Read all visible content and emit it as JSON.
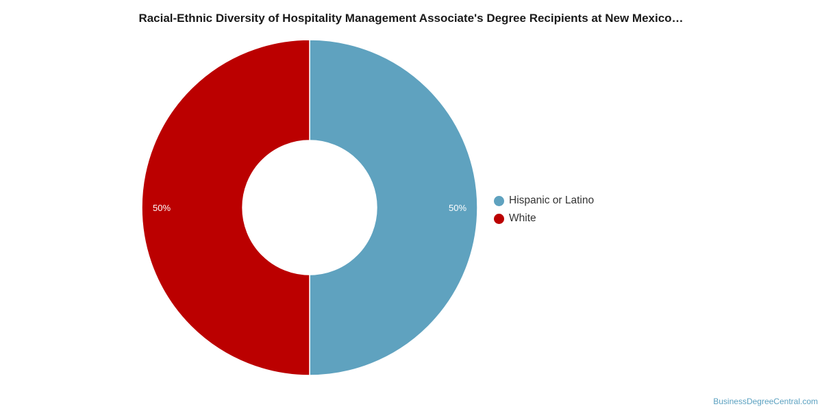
{
  "chart_data": {
    "type": "pie",
    "subtype": "donut",
    "title": "Racial-Ethnic Diversity of Hospitality Management Associate's Degree Recipients at New Mexico…",
    "slices": [
      {
        "label": "Hispanic or Latino",
        "value": 50,
        "display": "50%",
        "color": "#5fa2bf"
      },
      {
        "label": "White",
        "value": 50,
        "display": "50%",
        "color": "#bb0000"
      }
    ],
    "legend_placement": "right"
  },
  "watermark": "BusinessDegreeCentral.com"
}
